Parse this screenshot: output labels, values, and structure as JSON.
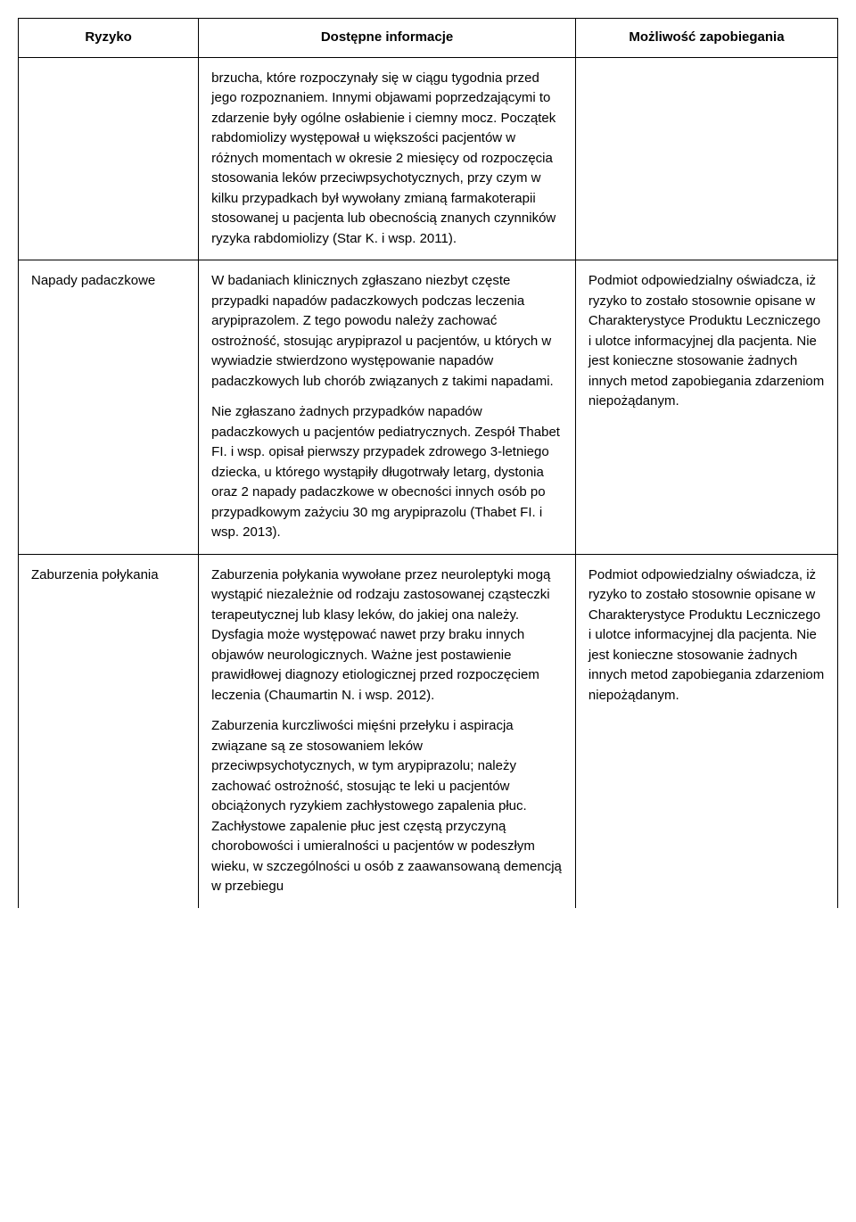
{
  "headers": {
    "col1": "Ryzyko",
    "col2": "Dostępne informacje",
    "col3": "Możliwość zapobiegania"
  },
  "rows": [
    {
      "risk": "",
      "info_paras": [
        "brzucha, które rozpoczynały się w ciągu tygodnia przed jego rozpoznaniem. Innymi objawami poprzedzającymi to zdarzenie były ogólne osłabienie i ciemny mocz. Początek rabdomiolizy występował u większości pacjentów w różnych momentach w okresie 2 miesięcy od rozpoczęcia stosowania leków przeciwpsychotycznych, przy czym w kilku przypadkach był wywołany zmianą farmakoterapii stosowanej u pacjenta lub obecnością znanych czynników ryzyka rabdomiolizy (Star K. i wsp. 2011)."
      ],
      "prevent_paras": []
    },
    {
      "risk": "Napady padaczkowe",
      "info_paras": [
        "W badaniach klinicznych zgłaszano niezbyt częste przypadki napadów padaczkowych podczas leczenia arypiprazolem. Z tego powodu należy zachować ostrożność, stosując arypiprazol u pacjentów, u których w wywiadzie stwierdzono występowanie napadów padaczkowych lub chorób związanych z takimi napadami.",
        "Nie zgłaszano żadnych przypadków napadów padaczkowych u pacjentów pediatrycznych. Zespół Thabet FI. i wsp. opisał pierwszy przypadek zdrowego 3-letniego dziecka, u którego wystąpiły długotrwały letarg, dystonia oraz 2 napady padaczkowe w obecności innych osób po przypadkowym zażyciu 30 mg arypiprazolu (Thabet FI. i wsp. 2013)."
      ],
      "prevent_paras": [
        "Podmiot odpowiedzialny oświadcza, iż ryzyko to zostało stosownie opisane w Charakterystyce Produktu Leczniczego i ulotce informacyjnej dla pacjenta. Nie jest konieczne stosowanie żadnych innych metod zapobiegania zdarzeniom niepożądanym."
      ]
    },
    {
      "risk": "Zaburzenia połykania",
      "info_paras": [
        "Zaburzenia połykania wywołane przez neuroleptyki mogą wystąpić niezależnie od rodzaju zastosowanej cząsteczki terapeutycznej lub klasy leków, do jakiej ona należy. Dysfagia może występować nawet przy braku innych objawów neurologicznych. Ważne jest postawienie prawidłowej diagnozy etiologicznej przed rozpoczęciem leczenia (Chaumartin N. i wsp. 2012).",
        "Zaburzenia kurczliwości mięśni przełyku i aspiracja związane są ze stosowaniem leków przeciwpsychotycznych, w tym arypiprazolu; należy zachować ostrożność, stosując te leki u pacjentów obciążonych ryzykiem zachłystowego zapalenia płuc. Zachłystowe zapalenie płuc jest częstą przyczyną chorobowości i umieralności u pacjentów w podeszłym wieku, w szczególności u osób z zaawansowaną demencją w przebiegu"
      ],
      "prevent_paras": [
        "Podmiot odpowiedzialny oświadcza, iż ryzyko to zostało stosownie opisane w Charakterystyce Produktu Leczniczego i ulotce informacyjnej dla pacjenta. Nie jest konieczne stosowanie żadnych innych metod zapobiegania zdarzeniom niepożądanym."
      ]
    }
  ]
}
